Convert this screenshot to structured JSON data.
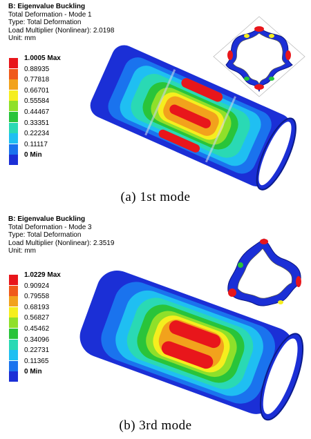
{
  "panels": [
    {
      "title": "B: Eigenvalue Buckling",
      "subtitle": "Total Deformation - Mode 1",
      "type_line": "Type: Total Deformation",
      "load_line": "Load Multiplier (Nonlinear): 2.0198",
      "unit_line": "Unit: mm",
      "legend": [
        {
          "label": "1.0005 Max",
          "color": "#e8161b",
          "bold": true
        },
        {
          "label": "0.88935",
          "color": "#f05a1a",
          "bold": false
        },
        {
          "label": "0.77818",
          "color": "#f2a21c",
          "bold": false
        },
        {
          "label": "0.66701",
          "color": "#f5ee1e",
          "bold": false
        },
        {
          "label": "0.55584",
          "color": "#8fe02a",
          "bold": false
        },
        {
          "label": "0.44467",
          "color": "#29c43a",
          "bold": false
        },
        {
          "label": "0.33351",
          "color": "#2ad9b4",
          "bold": false
        },
        {
          "label": "0.22234",
          "color": "#1fbff2",
          "bold": false
        },
        {
          "label": "0.11117",
          "color": "#1a73ee",
          "bold": false
        },
        {
          "label": "0 Min",
          "color": "#1b2fd6",
          "bold": true
        }
      ],
      "caption": "(a)  1st  mode"
    },
    {
      "title": "B: Eigenvalue Buckling",
      "subtitle": "Total Deformation - Mode 3",
      "type_line": "Type: Total Deformation",
      "load_line": "Load Multiplier (Nonlinear): 2.3519",
      "unit_line": "Unit: mm",
      "legend": [
        {
          "label": "1.0229 Max",
          "color": "#e8161b",
          "bold": true
        },
        {
          "label": "0.90924",
          "color": "#f05a1a",
          "bold": false
        },
        {
          "label": "0.79558",
          "color": "#f2a21c",
          "bold": false
        },
        {
          "label": "0.68193",
          "color": "#f5ee1e",
          "bold": false
        },
        {
          "label": "0.56827",
          "color": "#8fe02a",
          "bold": false
        },
        {
          "label": "0.45462",
          "color": "#29c43a",
          "bold": false
        },
        {
          "label": "0.34096",
          "color": "#2ad9b4",
          "bold": false
        },
        {
          "label": "0.22731",
          "color": "#1fbff2",
          "bold": false
        },
        {
          "label": "0.11365",
          "color": "#1a73ee",
          "bold": false
        },
        {
          "label": "0 Min",
          "color": "#1b2fd6",
          "bold": true
        }
      ],
      "caption": "(b)  3rd  mode"
    }
  ]
}
